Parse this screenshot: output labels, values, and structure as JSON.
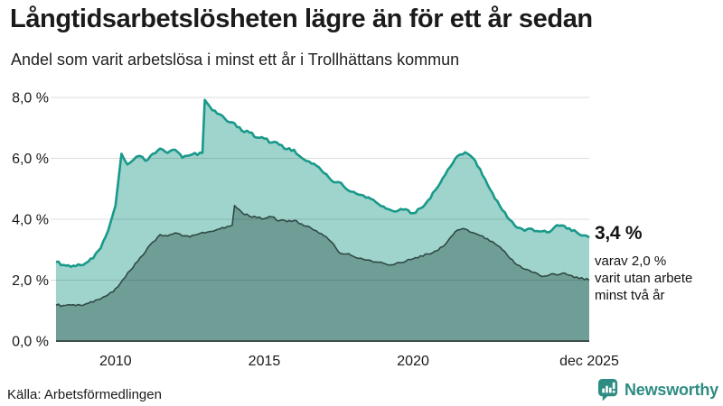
{
  "header": {
    "title": "Långtidsarbetslösheten lägre än för ett år sedan",
    "subtitle": "Andel som varit arbetslösa i minst ett år i Trollhättans kommun"
  },
  "annotation": {
    "value": "3,4 %",
    "lines": [
      "varav 2,0 %",
      "varit utan arbete",
      "minst två år"
    ]
  },
  "footer": {
    "source": "Källa: Arbetsförmedlingen",
    "brand": "Newsworthy"
  },
  "colors": {
    "accent_line": "#18998a",
    "fill_light": "#9fd4cc",
    "fill_dark": "#6f9e96",
    "dark_line": "#2f4a44",
    "baseline": "#3e4e49",
    "grid": "rgba(30,40,40,0.16)",
    "tick_text": "#1a1a1a",
    "brand_teal": "#2e8c82"
  },
  "chart_data": {
    "type": "area",
    "title": "Långtidsarbetslösheten lägre än för ett år sedan",
    "subtitle": "Andel som varit arbetslösa i minst ett år i Trollhättans kommun",
    "xlim": [
      2008.0,
      2025.92
    ],
    "ylim": [
      0,
      8.3
    ],
    "grid": "horizontal",
    "legend": "none",
    "x_axis": {
      "ticks": [
        {
          "x": 2010,
          "label": "2010"
        },
        {
          "x": 2015,
          "label": "2015"
        },
        {
          "x": 2020,
          "label": "2020"
        },
        {
          "x": 2025.92,
          "label": "dec 2025"
        }
      ]
    },
    "y_axis": {
      "ticks": [
        {
          "v": 0,
          "label": "0,0 %"
        },
        {
          "v": 2,
          "label": "2,0 %"
        },
        {
          "v": 4,
          "label": "4,0 %"
        },
        {
          "v": 6,
          "label": "6,0 %"
        },
        {
          "v": 8,
          "label": "8,0 %"
        }
      ]
    },
    "series": [
      {
        "name": "Arbetslösa minst ett år",
        "fill": "#9fd4cc",
        "line": "#18998a",
        "last_value_label": "3,4 %",
        "points": [
          [
            2008.0,
            2.6
          ],
          [
            2008.25,
            2.5
          ],
          [
            2008.5,
            2.44
          ],
          [
            2008.75,
            2.52
          ],
          [
            2009.0,
            2.56
          ],
          [
            2009.25,
            2.72
          ],
          [
            2009.5,
            3.05
          ],
          [
            2009.75,
            3.62
          ],
          [
            2010.0,
            4.45
          ],
          [
            2010.2,
            6.15
          ],
          [
            2010.4,
            5.8
          ],
          [
            2010.6,
            5.95
          ],
          [
            2010.8,
            6.08
          ],
          [
            2011.0,
            5.92
          ],
          [
            2011.25,
            6.15
          ],
          [
            2011.5,
            6.32
          ],
          [
            2011.75,
            6.18
          ],
          [
            2012.0,
            6.28
          ],
          [
            2012.25,
            6.02
          ],
          [
            2012.5,
            6.1
          ],
          [
            2012.92,
            6.18
          ],
          [
            2013.0,
            7.92
          ],
          [
            2013.25,
            7.58
          ],
          [
            2013.5,
            7.45
          ],
          [
            2013.75,
            7.22
          ],
          [
            2014.0,
            7.15
          ],
          [
            2014.25,
            6.9
          ],
          [
            2014.5,
            6.85
          ],
          [
            2014.75,
            6.68
          ],
          [
            2015.0,
            6.65
          ],
          [
            2015.25,
            6.52
          ],
          [
            2015.5,
            6.45
          ],
          [
            2015.75,
            6.3
          ],
          [
            2016.0,
            6.28
          ],
          [
            2016.25,
            6.02
          ],
          [
            2016.5,
            5.9
          ],
          [
            2016.75,
            5.76
          ],
          [
            2017.0,
            5.52
          ],
          [
            2017.25,
            5.28
          ],
          [
            2017.5,
            5.22
          ],
          [
            2017.75,
            5.0
          ],
          [
            2018.0,
            4.9
          ],
          [
            2018.25,
            4.8
          ],
          [
            2018.5,
            4.72
          ],
          [
            2018.75,
            4.56
          ],
          [
            2019.0,
            4.42
          ],
          [
            2019.25,
            4.3
          ],
          [
            2019.5,
            4.28
          ],
          [
            2019.75,
            4.33
          ],
          [
            2020.0,
            4.2
          ],
          [
            2020.25,
            4.36
          ],
          [
            2020.5,
            4.62
          ],
          [
            2020.75,
            4.96
          ],
          [
            2021.0,
            5.35
          ],
          [
            2021.25,
            5.72
          ],
          [
            2021.5,
            6.08
          ],
          [
            2021.75,
            6.2
          ],
          [
            2022.0,
            6.02
          ],
          [
            2022.25,
            5.65
          ],
          [
            2022.5,
            5.14
          ],
          [
            2022.75,
            4.68
          ],
          [
            2023.0,
            4.3
          ],
          [
            2023.25,
            3.98
          ],
          [
            2023.5,
            3.72
          ],
          [
            2023.75,
            3.62
          ],
          [
            2024.0,
            3.68
          ],
          [
            2024.25,
            3.6
          ],
          [
            2024.5,
            3.57
          ],
          [
            2024.75,
            3.74
          ],
          [
            2025.0,
            3.8
          ],
          [
            2025.25,
            3.7
          ],
          [
            2025.5,
            3.57
          ],
          [
            2025.92,
            3.4
          ]
        ]
      },
      {
        "name": "varav arbetslösa minst två år",
        "fill": "#6f9e96",
        "line": "#2f4a44",
        "last_value_label": "2,0 %",
        "points": [
          [
            2008.0,
            1.18
          ],
          [
            2008.25,
            1.17
          ],
          [
            2008.5,
            1.18
          ],
          [
            2008.75,
            1.2
          ],
          [
            2009.0,
            1.22
          ],
          [
            2009.25,
            1.28
          ],
          [
            2009.5,
            1.38
          ],
          [
            2009.75,
            1.52
          ],
          [
            2010.0,
            1.72
          ],
          [
            2010.25,
            2.02
          ],
          [
            2010.5,
            2.32
          ],
          [
            2010.75,
            2.62
          ],
          [
            2011.0,
            2.92
          ],
          [
            2011.25,
            3.25
          ],
          [
            2011.5,
            3.5
          ],
          [
            2011.75,
            3.45
          ],
          [
            2012.0,
            3.55
          ],
          [
            2012.25,
            3.45
          ],
          [
            2012.5,
            3.42
          ],
          [
            2012.75,
            3.5
          ],
          [
            2013.0,
            3.55
          ],
          [
            2013.25,
            3.6
          ],
          [
            2013.5,
            3.68
          ],
          [
            2013.92,
            3.8
          ],
          [
            2014.0,
            4.45
          ],
          [
            2014.25,
            4.22
          ],
          [
            2014.5,
            4.1
          ],
          [
            2014.75,
            4.05
          ],
          [
            2015.0,
            4.02
          ],
          [
            2015.25,
            4.08
          ],
          [
            2015.5,
            3.95
          ],
          [
            2015.75,
            3.92
          ],
          [
            2016.0,
            3.96
          ],
          [
            2016.25,
            3.85
          ],
          [
            2016.5,
            3.76
          ],
          [
            2016.75,
            3.62
          ],
          [
            2017.0,
            3.46
          ],
          [
            2017.25,
            3.26
          ],
          [
            2017.5,
            2.92
          ],
          [
            2017.75,
            2.86
          ],
          [
            2018.0,
            2.78
          ],
          [
            2018.25,
            2.72
          ],
          [
            2018.5,
            2.66
          ],
          [
            2018.75,
            2.6
          ],
          [
            2019.0,
            2.56
          ],
          [
            2019.25,
            2.5
          ],
          [
            2019.5,
            2.58
          ],
          [
            2019.75,
            2.62
          ],
          [
            2020.0,
            2.7
          ],
          [
            2020.25,
            2.8
          ],
          [
            2020.5,
            2.86
          ],
          [
            2020.75,
            2.96
          ],
          [
            2021.0,
            3.1
          ],
          [
            2021.25,
            3.4
          ],
          [
            2021.5,
            3.65
          ],
          [
            2021.75,
            3.68
          ],
          [
            2022.0,
            3.56
          ],
          [
            2022.25,
            3.46
          ],
          [
            2022.5,
            3.36
          ],
          [
            2022.75,
            3.2
          ],
          [
            2023.0,
            3.0
          ],
          [
            2023.25,
            2.72
          ],
          [
            2023.5,
            2.5
          ],
          [
            2023.75,
            2.36
          ],
          [
            2024.0,
            2.26
          ],
          [
            2024.25,
            2.16
          ],
          [
            2024.5,
            2.14
          ],
          [
            2024.75,
            2.2
          ],
          [
            2025.0,
            2.22
          ],
          [
            2025.25,
            2.16
          ],
          [
            2025.5,
            2.1
          ],
          [
            2025.92,
            2.0
          ]
        ]
      }
    ]
  }
}
